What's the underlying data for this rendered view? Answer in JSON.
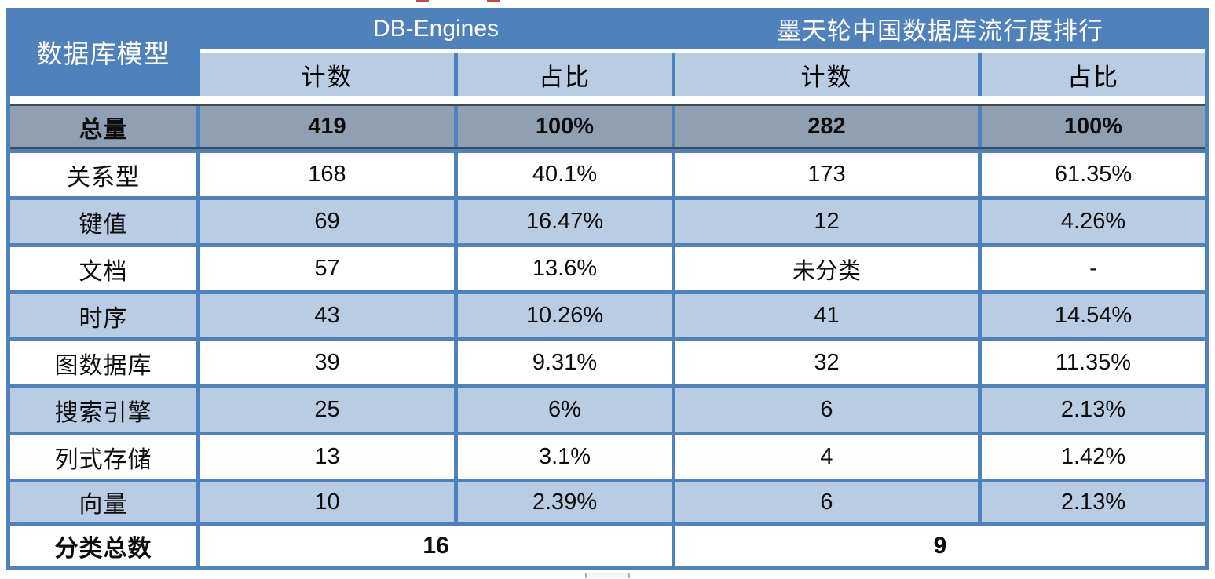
{
  "table": {
    "corner_header": "数据库模型",
    "groups": [
      {
        "label": "DB-Engines"
      },
      {
        "label": "墨天轮中国数据库流行度排行"
      }
    ],
    "sub_headers": [
      "计数",
      "占比",
      "计数",
      "占比"
    ],
    "rows": [
      {
        "label": "总量",
        "cells": [
          "419",
          "100%",
          "282",
          "100%"
        ],
        "variant": "total"
      },
      {
        "label": "关系型",
        "cells": [
          "168",
          "40.1%",
          "173",
          "61.35%"
        ],
        "variant": "white"
      },
      {
        "label": "键值",
        "cells": [
          "69",
          "16.47%",
          "12",
          "4.26%"
        ],
        "variant": "blue"
      },
      {
        "label": "文档",
        "cells": [
          "57",
          "13.6%",
          "未分类",
          "-"
        ],
        "variant": "white"
      },
      {
        "label": "时序",
        "cells": [
          "43",
          "10.26%",
          "41",
          "14.54%"
        ],
        "variant": "blue"
      },
      {
        "label": "图数据库",
        "cells": [
          "39",
          "9.31%",
          "32",
          "11.35%"
        ],
        "variant": "white"
      },
      {
        "label": "搜索引擎",
        "cells": [
          "25",
          "6%",
          "6",
          "2.13%"
        ],
        "variant": "blue"
      },
      {
        "label": "列式存储",
        "cells": [
          "13",
          "3.1%",
          "4",
          "1.42%"
        ],
        "variant": "white"
      },
      {
        "label": "向量",
        "cells": [
          "10",
          "2.39%",
          "6",
          "2.13%"
        ],
        "variant": "blue"
      }
    ],
    "footer": {
      "label": "分类总数",
      "values": [
        "16",
        "9"
      ]
    }
  },
  "chart_data": {
    "type": "table",
    "columns": [
      "数据库模型",
      "DB-Engines 计数",
      "DB-Engines 占比",
      "墨天轮中国数据库流行度排行 计数",
      "墨天轮中国数据库流行度排行 占比"
    ],
    "rows": [
      [
        "总量",
        419,
        "100%",
        282,
        "100%"
      ],
      [
        "关系型",
        168,
        "40.1%",
        173,
        "61.35%"
      ],
      [
        "键值",
        69,
        "16.47%",
        12,
        "4.26%"
      ],
      [
        "文档",
        57,
        "13.6%",
        "未分类",
        "-"
      ],
      [
        "时序",
        43,
        "10.26%",
        41,
        "14.54%"
      ],
      [
        "图数据库",
        39,
        "9.31%",
        32,
        "11.35%"
      ],
      [
        "搜索引擎",
        25,
        "6%",
        6,
        "2.13%"
      ],
      [
        "列式存储",
        13,
        "3.1%",
        4,
        "1.42%"
      ],
      [
        "向量",
        10,
        "2.39%",
        6,
        "2.13%"
      ]
    ],
    "footer": {
      "label": "分类总数",
      "db_engines_category_total": 16,
      "modb_category_total": 9
    }
  },
  "colors": {
    "header_blue": "#4F81BD",
    "light_blue_row": "#B8CCE4",
    "total_row_gray": "#8FA0B3",
    "grid_border_blue": "#4F81BD",
    "total_row_dark_line": "#3F4A56",
    "red_text_fragment": "#BE4B48",
    "text": "#111111"
  }
}
